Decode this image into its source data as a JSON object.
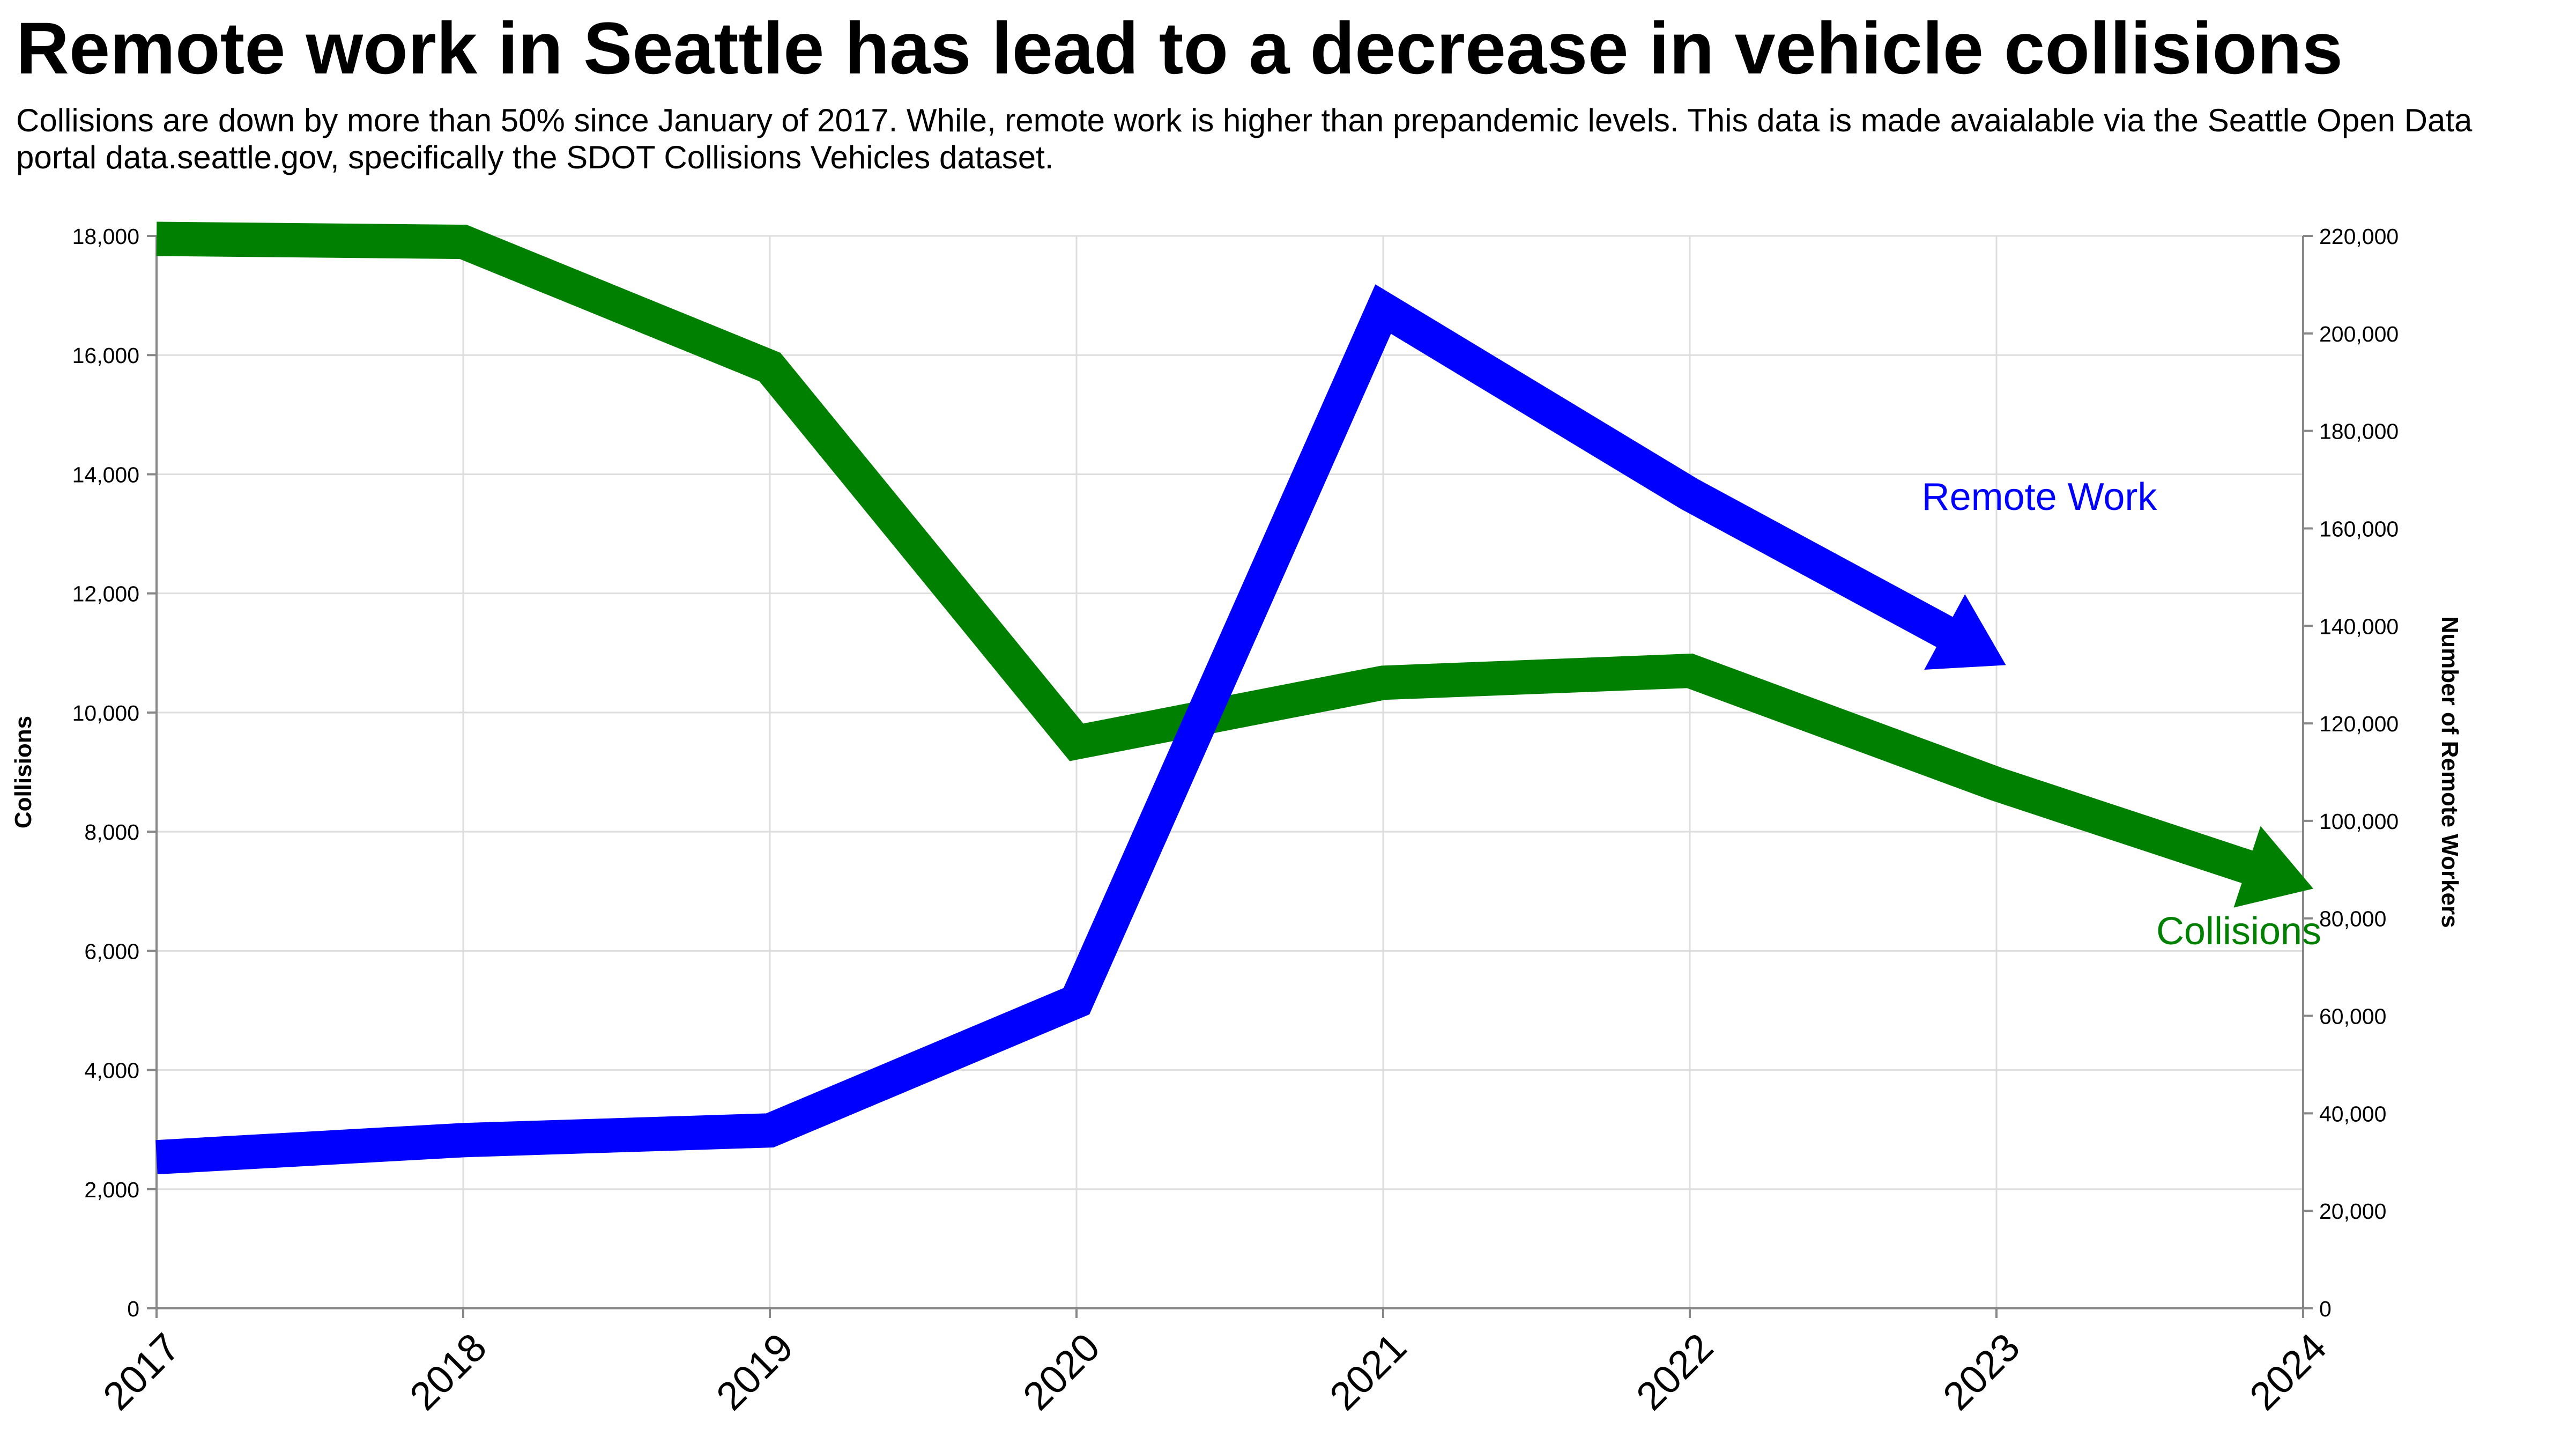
{
  "title": "Remote work in Seattle has lead to a decrease in vehicle collisions",
  "subtitle": "Collisions are down by more than 50% since January of 2017. While, remote work is higher than prepandemic levels. This data is made avaialable via the Seattle Open Data portal data.seattle.gov, specifically the SDOT Collisions Vehicles dataset.",
  "chart_data": {
    "type": "line",
    "x": [
      "2017",
      "2018",
      "2019",
      "2020",
      "2021",
      "2022",
      "2023",
      "2024"
    ],
    "ylabel": "Collisions",
    "ylabel_right": "Number of Remote Workers",
    "ylim": [
      0,
      18000
    ],
    "ylim_right": [
      0,
      220000
    ],
    "yticks": [
      0,
      2000,
      4000,
      6000,
      8000,
      10000,
      12000,
      14000,
      16000,
      18000
    ],
    "yticks_right": [
      0,
      20000,
      40000,
      60000,
      80000,
      100000,
      120000,
      140000,
      160000,
      180000,
      200000,
      220000
    ],
    "grid": true,
    "series": [
      {
        "name": "Collisions",
        "axis": "left",
        "color": "#008000",
        "x": [
          "2017",
          "2018",
          "2019",
          "2020",
          "2021",
          "2022",
          "2023",
          "2024"
        ],
        "values": [
          17950,
          17900,
          15800,
          9500,
          10500,
          10700,
          8800,
          7100
        ]
      },
      {
        "name": "Remote Work",
        "axis": "right",
        "color": "#0000ff",
        "x": [
          "2017",
          "2018",
          "2019",
          "2020",
          "2021",
          "2022",
          "2023"
        ],
        "values": [
          31000,
          34500,
          36500,
          63000,
          205000,
          167000,
          133000
        ]
      }
    ]
  }
}
